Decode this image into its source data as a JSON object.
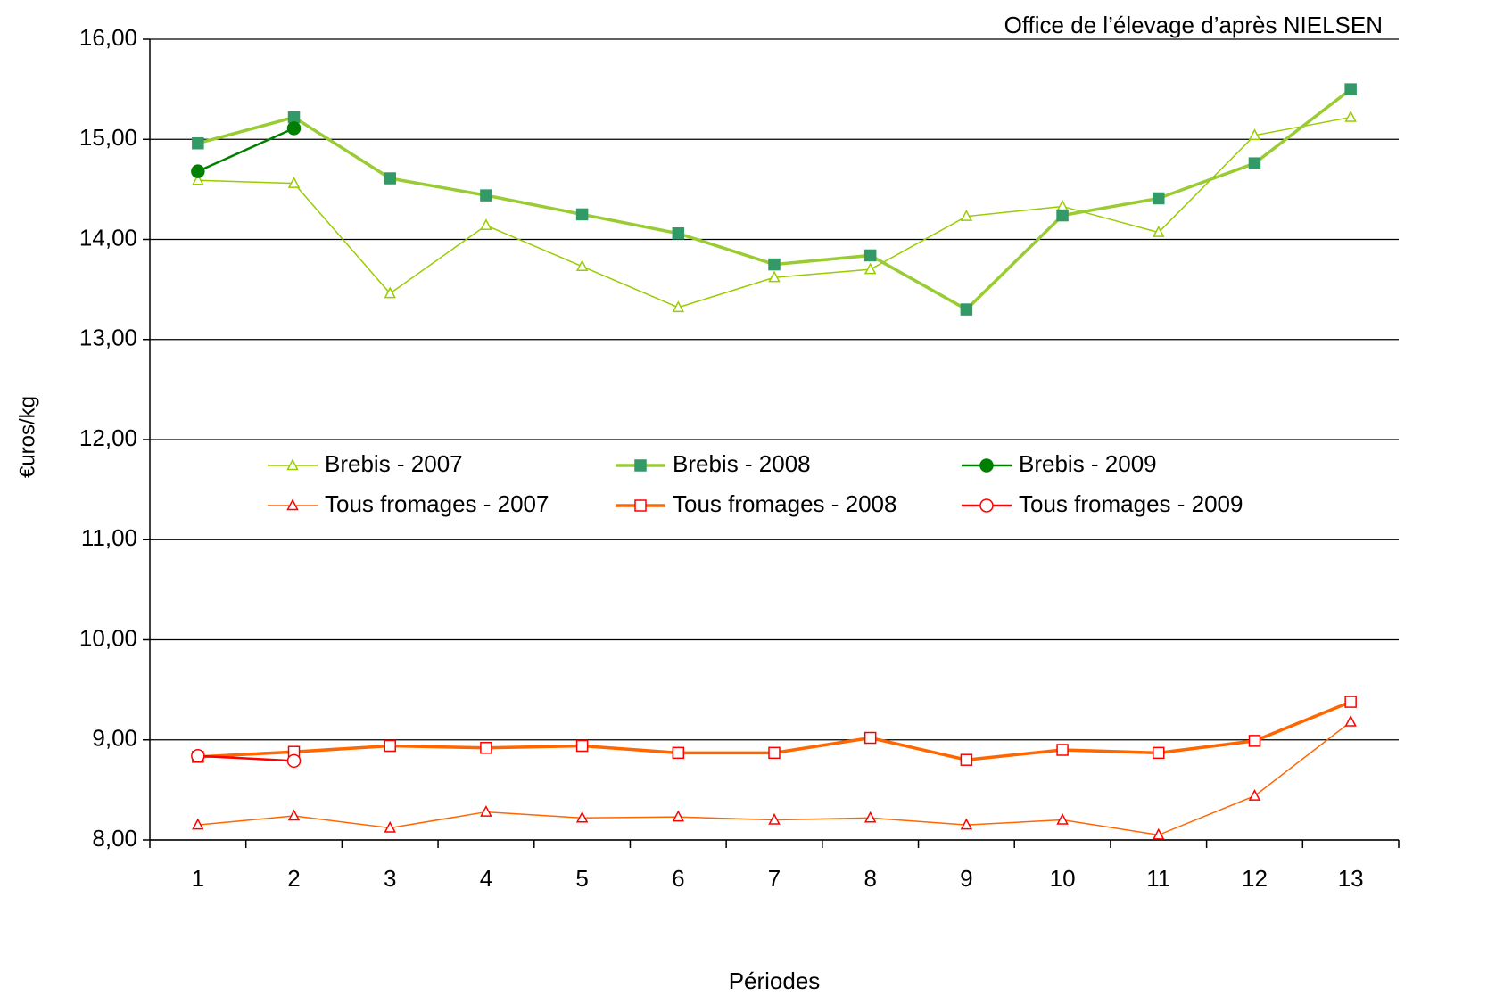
{
  "chart_data": {
    "type": "line",
    "source": "Office de l’élevage d’après NIELSEN",
    "y_label": "€uros/kg",
    "x_label": "Périodes",
    "categories": [
      "1",
      "2",
      "3",
      "4",
      "5",
      "6",
      "7",
      "8",
      "9",
      "10",
      "11",
      "12",
      "13"
    ],
    "ylim": [
      8,
      16
    ],
    "yticks": [
      {
        "value": 8,
        "label": "8,00"
      },
      {
        "value": 9,
        "label": "9,00"
      },
      {
        "value": 10,
        "label": "10,00"
      },
      {
        "value": 11,
        "label": "11,00"
      },
      {
        "value": 12,
        "label": "12,00"
      },
      {
        "value": 13,
        "label": "13,00"
      },
      {
        "value": 14,
        "label": "14,00"
      },
      {
        "value": 15,
        "label": "15,00"
      },
      {
        "value": 16,
        "label": "16,00"
      }
    ],
    "grid": true,
    "series": [
      {
        "name": "Brebis - 2007",
        "color": "#99cc00",
        "marker": "triangle",
        "marker_color": "#99cc00",
        "filled": false,
        "values": [
          14.59,
          14.56,
          13.46,
          14.14,
          13.73,
          13.32,
          13.62,
          13.7,
          14.23,
          14.33,
          14.07,
          15.04,
          15.22
        ]
      },
      {
        "name": "Brebis - 2008",
        "color": "#99cc33",
        "marker": "square",
        "marker_color": "#339966",
        "filled": true,
        "values": [
          14.96,
          15.22,
          14.61,
          14.44,
          14.25,
          14.06,
          13.75,
          13.84,
          13.3,
          14.24,
          14.41,
          14.76,
          15.5
        ]
      },
      {
        "name": "Brebis - 2009",
        "color": "#008000",
        "marker": "circle",
        "marker_color": "#008000",
        "filled": true,
        "values": [
          14.68,
          15.11,
          null,
          null,
          null,
          null,
          null,
          null,
          null,
          null,
          null,
          null,
          null
        ]
      },
      {
        "name": "Tous fromages - 2007",
        "color": "#ff6600",
        "marker": "triangle",
        "marker_color": "#ff0000",
        "filled": false,
        "values": [
          8.15,
          8.24,
          8.12,
          8.28,
          8.22,
          8.23,
          8.2,
          8.22,
          8.15,
          8.2,
          8.05,
          8.44,
          9.18
        ]
      },
      {
        "name": "Tous fromages - 2008",
        "color": "#ff6600",
        "marker": "square",
        "marker_color": "#ff0000",
        "filled": false,
        "values": [
          8.83,
          8.88,
          8.94,
          8.92,
          8.94,
          8.87,
          8.87,
          9.02,
          8.8,
          8.9,
          8.87,
          8.99,
          9.38
        ]
      },
      {
        "name": "Tous fromages - 2009",
        "color": "#ff0000",
        "marker": "circle",
        "marker_color": "#ff0000",
        "filled": false,
        "values": [
          8.84,
          8.79,
          null,
          null,
          null,
          null,
          null,
          null,
          null,
          null,
          null,
          null,
          null
        ]
      }
    ]
  }
}
